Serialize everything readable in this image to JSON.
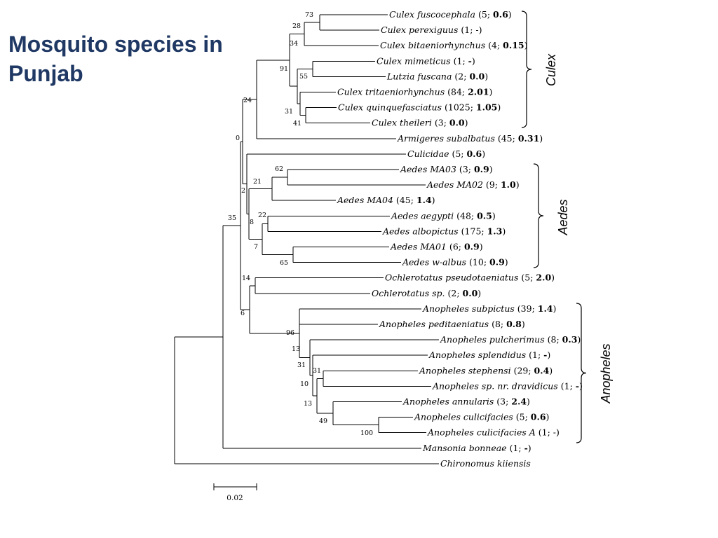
{
  "title_lines": [
    "Mosquito species in",
    "Punjab"
  ],
  "leaves": [
    {
      "name": "Culex fuscocephala",
      "count": "5",
      "value": "0.6"
    },
    {
      "name": "Culex perexiguus",
      "count": "1",
      "value": "-",
      "value_bold": false
    },
    {
      "name": "Culex bitaeniorhynchus",
      "count": "4",
      "value": "0.15"
    },
    {
      "name": "Culex mimeticus",
      "count": "1",
      "value": "-"
    },
    {
      "name": "Lutzia fuscana",
      "count": "2",
      "value": "0.0"
    },
    {
      "name": "Culex tritaeniorhynchus",
      "count": "84",
      "value": "2.01"
    },
    {
      "name": "Culex quinquefasciatus",
      "count": "1025",
      "value": "1.05"
    },
    {
      "name": "Culex theileri",
      "count": "3",
      "value": "0.0"
    },
    {
      "name": "Armigeres subalbatus",
      "count": "45",
      "value": "0.31"
    },
    {
      "name": "Culicidae",
      "count": "5",
      "value": "0.6"
    },
    {
      "name": "Aedes MA03",
      "count": "3",
      "value": "0.9"
    },
    {
      "name": "Aedes MA02",
      "count": "9",
      "value": "1.0"
    },
    {
      "name": "Aedes MA04",
      "count": "45",
      "value": "1.4"
    },
    {
      "name": "Aedes aegypti",
      "count": "48",
      "value": "0.5"
    },
    {
      "name": "Aedes albopictus",
      "count": "175",
      "value": "1.3"
    },
    {
      "name": "Aedes MA01",
      "count": "6",
      "value": "0.9"
    },
    {
      "name": "Aedes w-albus",
      "count": "10",
      "value": "0.9"
    },
    {
      "name": "Ochlerotatus pseudotaeniatus",
      "count": "5",
      "value": "2.0"
    },
    {
      "name": "Ochlerotatus sp.",
      "count": "2",
      "value": "0.0"
    },
    {
      "name": "Anopheles subpictus",
      "count": "39",
      "value": "1.4"
    },
    {
      "name": "Anopheles peditaeniatus",
      "count": "8",
      "value": "0.8"
    },
    {
      "name": "Anopheles pulcherimus",
      "count": "8",
      "value": "0.3"
    },
    {
      "name": "Anopheles splendidus",
      "count": "1",
      "value": "-"
    },
    {
      "name": "Anopheles stephensi",
      "count": "29",
      "value": "0.4"
    },
    {
      "name": "Anopheles sp. nr. dravidicus",
      "count": "1",
      "value": "-"
    },
    {
      "name": "Anopheles annularis",
      "count": "3",
      "value": "2.4"
    },
    {
      "name": "Anopheles culicifacies",
      "count": "5",
      "value": "0.6"
    },
    {
      "name": "Anopheles culicifacies A",
      "count": "1",
      "value": "-",
      "value_bold": false
    },
    {
      "name": "Mansonia bonneae",
      "count": "1",
      "value": "-"
    },
    {
      "name": "Chironomus kiiensis"
    }
  ],
  "bootstrap_values": [
    "73",
    "28",
    "34",
    "91",
    "55",
    "24",
    "31",
    "41",
    "0",
    "62",
    "21",
    "2",
    "22",
    "8",
    "35",
    "7",
    "65",
    "14",
    "6",
    "96",
    "13",
    "31",
    "31",
    "10",
    "13",
    "49",
    "100"
  ],
  "groups": [
    "Culex",
    "Aedes",
    "Anopheles"
  ],
  "scale_bar_label": "0.02"
}
